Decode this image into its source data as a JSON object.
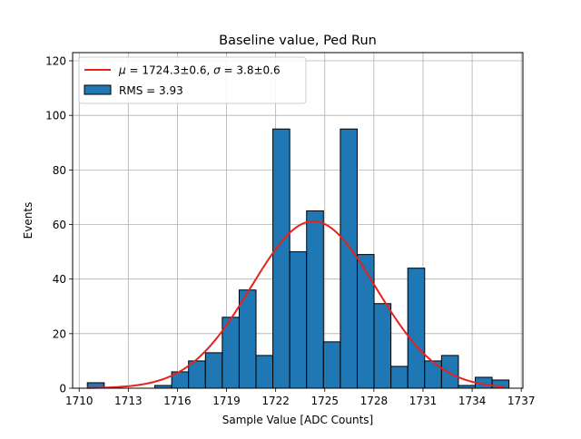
{
  "chart_data": {
    "type": "bar",
    "title": "Baseline value, Ped Run",
    "xlabel": "Sample Value [ADC Counts]",
    "ylabel": "Events",
    "xlim": [
      1709.6,
      1737.1
    ],
    "ylim": [
      0,
      123
    ],
    "grid": true,
    "legend_position": "top-left",
    "xticks": [
      1710,
      1713,
      1716,
      1719,
      1722,
      1725,
      1728,
      1731,
      1734,
      1737
    ],
    "yticks": [
      0,
      20,
      40,
      60,
      80,
      100,
      120
    ],
    "bin_width": 1.03,
    "histogram": {
      "bin_left_edges": [
        1710.5,
        1711.53,
        1712.56,
        1713.59,
        1714.62,
        1715.65,
        1716.68,
        1717.71,
        1718.74,
        1719.77,
        1720.8,
        1721.83,
        1722.86,
        1723.89,
        1724.92,
        1725.95,
        1726.98,
        1728.01,
        1729.04,
        1730.07,
        1731.1,
        1732.13,
        1733.16,
        1734.19,
        1735.22
      ],
      "counts": [
        2,
        0,
        0,
        0,
        1,
        6,
        10,
        13,
        26,
        36,
        12,
        95,
        50,
        65,
        17,
        95,
        49,
        31,
        8,
        44,
        10,
        12,
        1,
        4,
        3
      ],
      "fill_color": "#1f77b4",
      "edge_color": "#000000"
    },
    "fit": {
      "type": "gaussian",
      "mu": 1724.3,
      "sigma": 3.8,
      "peak": 61.2,
      "x_range": [
        1710.5,
        1736
      ],
      "color": "#e8211b"
    },
    "legend": [
      {
        "kind": "line",
        "prefix": "μ",
        "mid": " = 1724.3±0.6, ",
        "sigma": "σ",
        "suffix": " = 3.8±0.6",
        "color": "#e8211b"
      },
      {
        "kind": "patch",
        "label": "RMS = 3.93",
        "color": "#1f77b4"
      }
    ]
  }
}
